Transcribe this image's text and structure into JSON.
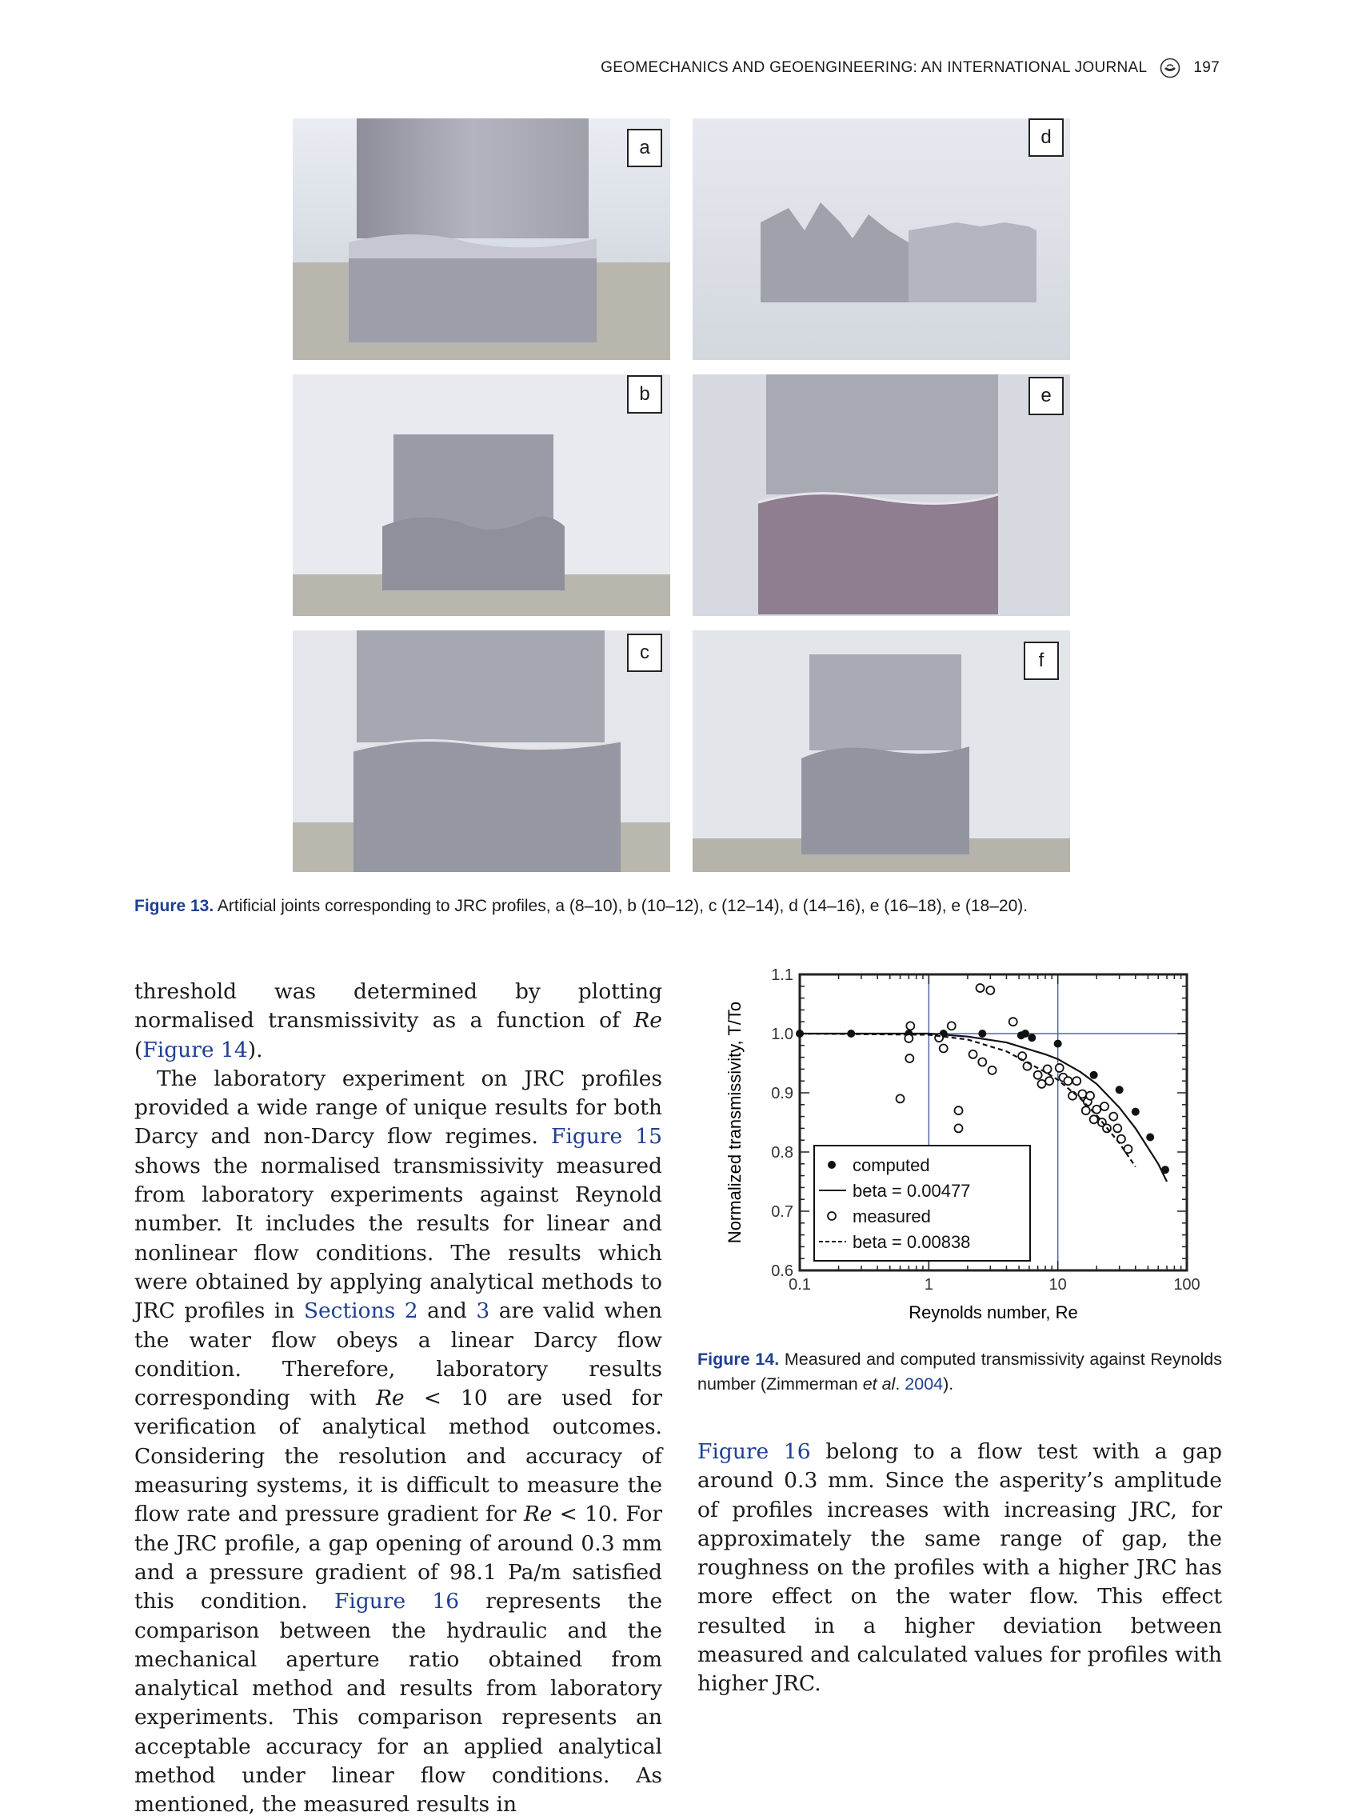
{
  "header": {
    "journal": "GEOMECHANICS AND GEOENGINEERING: AN INTERNATIONAL JOURNAL",
    "page_number": "197",
    "logo_icon": "publisher-logo-icon"
  },
  "figure13": {
    "panels": [
      "a",
      "b",
      "c",
      "d",
      "e",
      "f"
    ],
    "caption_label": "Figure 13.",
    "caption_text": "Artificial joints corresponding to JRC profiles, a (8–10), b (10–12), c (12–14), d (14–16), e (16–18), e (18–20)."
  },
  "left_column": {
    "p1_a": "threshold was determined by plotting normalised transmissivity as a function of ",
    "p1_re": "Re",
    "p1_b": " (",
    "p1_link": "Figure 14",
    "p1_c": ").",
    "p2_a": "The laboratory experiment on JRC profiles provided a wide range of unique results for both Darcy and non-Darcy flow regimes. ",
    "p2_link1": "Figure 15",
    "p2_b": " shows the normalised transmissivity measured from laboratory experiments against Reynold number. It includes the results for linear and nonlinear flow conditions. The results which were obtained by applying analytical methods to JRC profiles in ",
    "p2_link2": "Sections 2",
    "p2_c": " and ",
    "p2_link3": "3",
    "p2_d": " are valid when the water flow obeys a linear Darcy flow condition. Therefore, laboratory results corresponding with ",
    "p2_re1": "Re",
    "p2_e": " < 10 are used for verification of analytical method outcomes. Considering the resolution and accuracy of measuring systems, it is difficult to measure the flow rate and pressure gradient for ",
    "p2_re2": "Re",
    "p2_f": " < 10. For the JRC profile, a gap opening of around 0.3 mm and a pressure gradient of 98.1 Pa/m satisfied this condition. ",
    "p2_link4": "Figure 16",
    "p2_g": " represents the comparison between the hydraulic and the mechanical aperture ratio obtained from analytical method and results from laboratory experiments. This comparison represents an acceptable accuracy for an applied analytical method under linear flow conditions. As mentioned, the measured results in"
  },
  "figure14": {
    "caption_label": "Figure 14.",
    "caption_a": " Measured and computed transmissivity against Reynolds number (Zimmerman ",
    "caption_etal": "et al",
    "caption_b": ". ",
    "caption_link": "2004",
    "caption_c": ")."
  },
  "right_column": {
    "link": "Figure 16",
    "text": " belong to a flow test with a gap around 0.3 mm. Since the asperity’s amplitude of profiles increases with increasing JRC, for approximately the same range of gap, the roughness on the profiles with a higher JRC has more effect on the water flow. This effect resulted in a higher deviation between measured and calculated values for profiles with higher JRC."
  },
  "chart_data": {
    "type": "scatter",
    "xscale": "log",
    "xlim": [
      0.1,
      100
    ],
    "ylim": [
      0.6,
      1.1
    ],
    "xlabel": "Reynolds number, Re",
    "ylabel": "Normalized transmissivity, T/To",
    "xticks": [
      "0.1",
      "1",
      "10",
      "100"
    ],
    "yticks": [
      "0.6",
      "0.7",
      "0.8",
      "0.9",
      "1.0",
      "1.1"
    ],
    "reference_lines": {
      "x": [
        1,
        10
      ],
      "y": [
        1.0
      ],
      "color": "#5566b0"
    },
    "legend_position": "bottom-left",
    "series": [
      {
        "name": "computed",
        "style": "filled-circle",
        "points": [
          [
            0.1,
            1.0
          ],
          [
            0.25,
            1.0
          ],
          [
            0.7,
            1.0
          ],
          [
            1.3,
            1.0
          ],
          [
            2.6,
            1.0
          ],
          [
            5.2,
            0.997
          ],
          [
            5.6,
            1.0
          ],
          [
            6.3,
            0.993
          ],
          [
            10,
            0.983
          ],
          [
            19,
            0.93
          ],
          [
            30,
            0.905
          ],
          [
            40,
            0.868
          ],
          [
            52,
            0.825
          ],
          [
            68,
            0.77
          ]
        ]
      },
      {
        "name": "beta = 0.00477",
        "style": "solid-line",
        "x": [
          0.1,
          1,
          2,
          4,
          8,
          10,
          15,
          20,
          30,
          40,
          50,
          60,
          70
        ],
        "y": [
          1.0,
          1.0,
          0.995,
          0.985,
          0.965,
          0.957,
          0.935,
          0.915,
          0.875,
          0.84,
          0.807,
          0.78,
          0.75
        ]
      },
      {
        "name": "measured",
        "style": "open-circle",
        "points": [
          [
            0.72,
            1.013
          ],
          [
            0.7,
            0.992
          ],
          [
            0.71,
            0.958
          ],
          [
            0.6,
            0.89
          ],
          [
            1.2,
            0.993
          ],
          [
            1.5,
            1.013
          ],
          [
            1.7,
            0.87
          ],
          [
            1.7,
            0.84
          ],
          [
            1.3,
            0.975
          ],
          [
            2.5,
            1.077
          ],
          [
            3,
            1.073
          ],
          [
            4.5,
            1.02
          ],
          [
            2.2,
            0.965
          ],
          [
            2.6,
            0.952
          ],
          [
            3.1,
            0.938
          ],
          [
            5.3,
            0.962
          ],
          [
            5.8,
            0.945
          ],
          [
            7,
            0.93
          ],
          [
            8.3,
            0.94
          ],
          [
            10.3,
            0.942
          ],
          [
            7.5,
            0.915
          ],
          [
            8.6,
            0.92
          ],
          [
            11,
            0.926
          ],
          [
            12,
            0.92
          ],
          [
            14,
            0.92
          ],
          [
            13,
            0.895
          ],
          [
            15.5,
            0.898
          ],
          [
            17,
            0.885
          ],
          [
            17.8,
            0.895
          ],
          [
            20,
            0.872
          ],
          [
            23,
            0.877
          ],
          [
            27,
            0.86
          ],
          [
            16.5,
            0.87
          ],
          [
            19,
            0.855
          ],
          [
            22,
            0.85
          ],
          [
            24,
            0.84
          ],
          [
            29,
            0.84
          ],
          [
            31,
            0.822
          ],
          [
            35,
            0.805
          ]
        ]
      },
      {
        "name": "beta = 0.00838",
        "style": "dashed-line",
        "x": [
          0.1,
          1,
          2,
          4,
          8,
          10,
          15,
          20,
          30,
          40
        ],
        "y": [
          1.0,
          0.998,
          0.99,
          0.97,
          0.935,
          0.922,
          0.89,
          0.862,
          0.815,
          0.775
        ]
      }
    ]
  }
}
